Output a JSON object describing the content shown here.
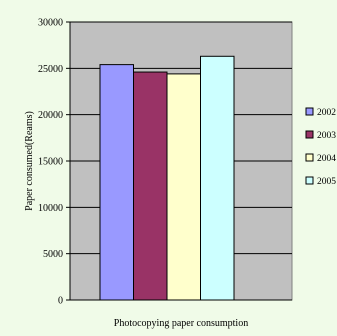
{
  "chart_data": {
    "type": "bar",
    "title": "",
    "xlabel": "Photocopying paper consumption",
    "ylabel": "Paper consumed(Reams)",
    "ylim": [
      0,
      30000
    ],
    "yticks": [
      0,
      5000,
      10000,
      15000,
      20000,
      25000,
      30000
    ],
    "categories": [
      ""
    ],
    "grid": true,
    "legend_position": "right",
    "series": [
      {
        "name": "2002",
        "values": [
          25400
        ],
        "color": "#9999ff"
      },
      {
        "name": "2003",
        "values": [
          24600
        ],
        "color": "#993366"
      },
      {
        "name": "2004",
        "values": [
          24400
        ],
        "color": "#ffffcc"
      },
      {
        "name": "2005",
        "values": [
          26300
        ],
        "color": "#ccffff"
      }
    ]
  },
  "colors": {
    "page_background": "#f0fbe8",
    "plot_background": "#c0c0c0",
    "axis": "#000000",
    "gridline": "#000000"
  }
}
